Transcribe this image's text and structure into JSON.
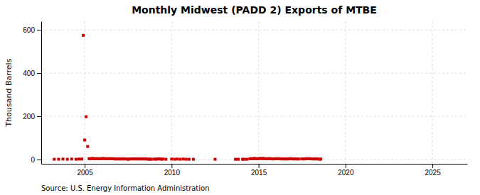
{
  "chart_data": {
    "type": "scatter",
    "title": "Monthly Midwest (PADD 2) Exports of MTBE",
    "y_label": "Thousand Barrels",
    "annotations": [
      "Source: U.S. Energy Information Administration"
    ],
    "color": "#cc0000",
    "marker": "square",
    "grid": true,
    "xlim": [
      2002.5,
      2027
    ],
    "xticks": [
      2005,
      2010,
      2015,
      2020,
      2025
    ],
    "ylim": [
      -20,
      640
    ],
    "yticks": [
      0,
      200,
      400,
      600
    ],
    "x": [
      2003.25,
      2003.5,
      2003.75,
      2004.0,
      2004.25,
      2004.5,
      2004.67,
      2004.83,
      2004.92,
      2005.0,
      2005.08,
      2005.17,
      2005.25,
      2005.33,
      2005.42,
      2005.5,
      2005.58,
      2005.67,
      2005.75,
      2005.83,
      2005.92,
      2006.0,
      2006.08,
      2006.17,
      2006.25,
      2006.33,
      2006.42,
      2006.5,
      2006.58,
      2006.67,
      2006.75,
      2006.83,
      2006.92,
      2007.0,
      2007.08,
      2007.17,
      2007.25,
      2007.33,
      2007.42,
      2007.5,
      2007.58,
      2007.67,
      2007.75,
      2007.83,
      2007.92,
      2008.0,
      2008.08,
      2008.17,
      2008.25,
      2008.33,
      2008.42,
      2008.5,
      2008.58,
      2008.67,
      2008.75,
      2008.83,
      2009.0,
      2009.08,
      2009.17,
      2009.25,
      2009.33,
      2009.42,
      2009.5,
      2009.67,
      2010.0,
      2010.17,
      2010.33,
      2010.5,
      2010.67,
      2010.83,
      2011.0,
      2011.25,
      2012.5,
      2013.67,
      2013.83,
      2014.08,
      2014.17,
      2014.33,
      2014.5,
      2014.58,
      2014.67,
      2014.75,
      2014.83,
      2014.92,
      2015.0,
      2015.08,
      2015.17,
      2015.25,
      2015.33,
      2015.42,
      2015.5,
      2015.58,
      2015.67,
      2015.75,
      2015.83,
      2015.92,
      2016.0,
      2016.08,
      2016.17,
      2016.25,
      2016.33,
      2016.42,
      2016.5,
      2016.58,
      2016.67,
      2016.75,
      2016.83,
      2016.92,
      2017.0,
      2017.08,
      2017.17,
      2017.25,
      2017.33,
      2017.5,
      2017.58,
      2017.67,
      2017.75,
      2017.83,
      2017.92,
      2018.0,
      2018.08,
      2018.17,
      2018.25,
      2018.33,
      2018.42,
      2018.5,
      2018.58
    ],
    "values": [
      1,
      1,
      2,
      1,
      2,
      1,
      2,
      2,
      575,
      90,
      198,
      60,
      4,
      3,
      5,
      4,
      3,
      4,
      3,
      4,
      3,
      4,
      5,
      3,
      4,
      3,
      4,
      3,
      4,
      3,
      2,
      3,
      2,
      3,
      2,
      3,
      2,
      3,
      2,
      1,
      2,
      3,
      2,
      3,
      2,
      3,
      2,
      3,
      2,
      3,
      2,
      3,
      2,
      1,
      2,
      1,
      2,
      1,
      2,
      3,
      2,
      1,
      2,
      1,
      2,
      1,
      2,
      1,
      2,
      1,
      1,
      1,
      1,
      1,
      1,
      1,
      1,
      1,
      3,
      4,
      3,
      5,
      4,
      3,
      4,
      5,
      4,
      5,
      4,
      3,
      4,
      3,
      4,
      3,
      2,
      3,
      4,
      3,
      4,
      3,
      2,
      3,
      2,
      3,
      2,
      3,
      4,
      3,
      2,
      3,
      2,
      3,
      2,
      3,
      2,
      3,
      4,
      3,
      4,
      3,
      2,
      3,
      2,
      3,
      2,
      1,
      2
    ]
  }
}
